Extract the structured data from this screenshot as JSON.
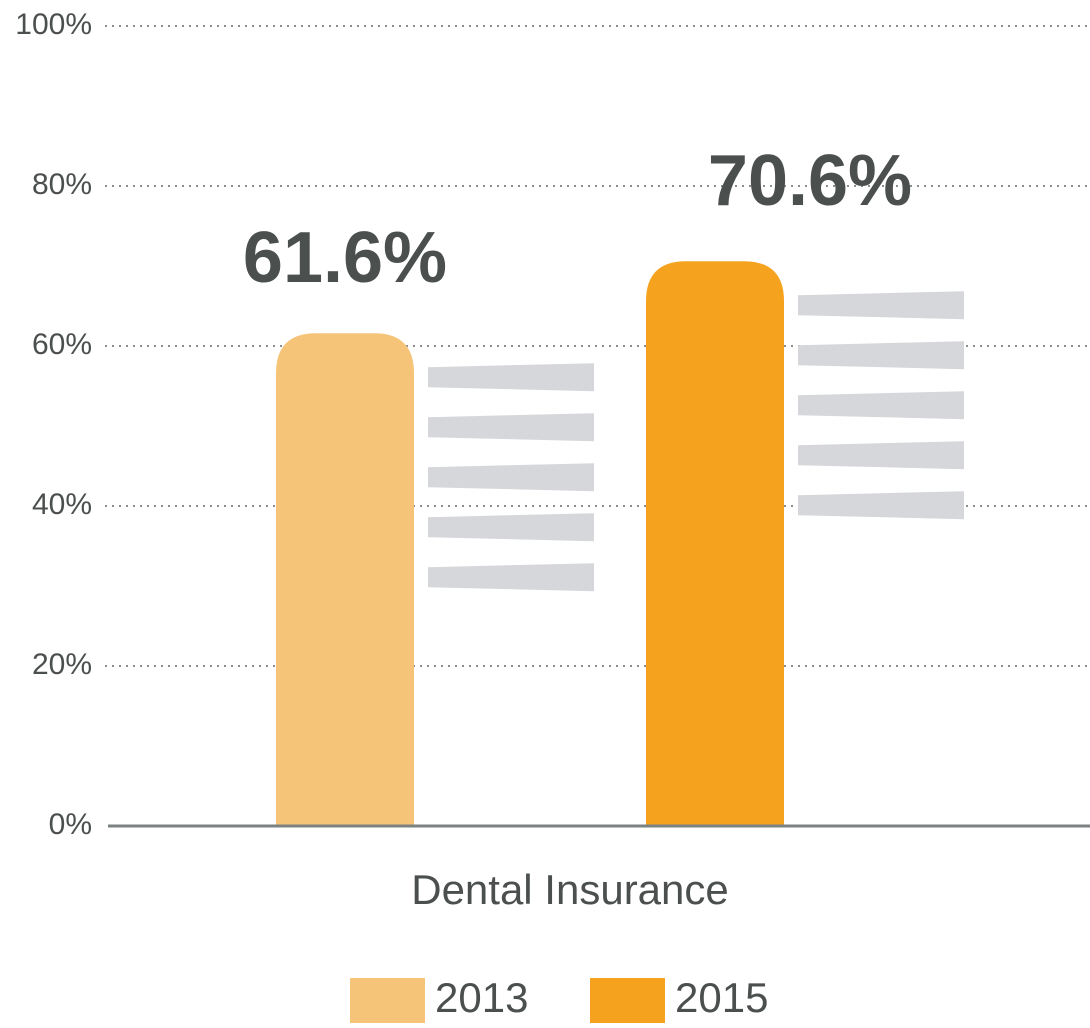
{
  "chart_data": {
    "type": "bar",
    "categories": [
      "Dental Insurance"
    ],
    "series": [
      {
        "name": "2013",
        "color": "#f5c478",
        "values": [
          61.6
        ],
        "value_labels": [
          "61.6%"
        ]
      },
      {
        "name": "2015",
        "color": "#f5a31f",
        "values": [
          70.6
        ],
        "value_labels": [
          "70.6%"
        ]
      }
    ],
    "ylim": [
      0,
      100
    ],
    "yticks": [
      {
        "value": 0,
        "label": "0%"
      },
      {
        "value": 20,
        "label": "20%"
      },
      {
        "value": 40,
        "label": "40%"
      },
      {
        "value": 60,
        "label": "60%"
      },
      {
        "value": 80,
        "label": "80%"
      },
      {
        "value": 100,
        "label": "100%"
      }
    ],
    "grid": true
  }
}
